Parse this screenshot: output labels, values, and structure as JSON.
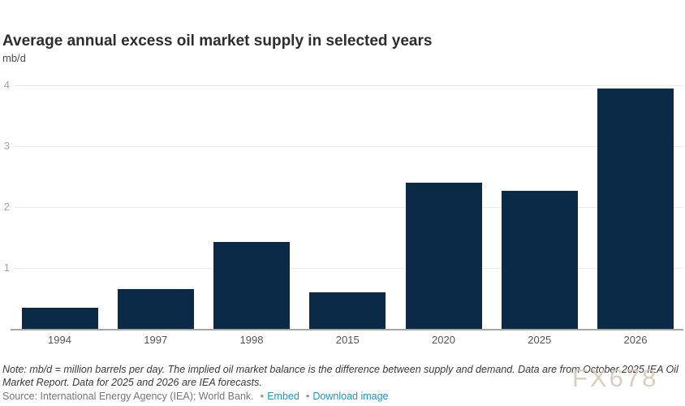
{
  "header": {
    "title": "Average annual excess oil market supply in selected years",
    "unit_label": "mb/d"
  },
  "chart_data": {
    "type": "bar",
    "categories": [
      "1994",
      "1997",
      "1998",
      "2015",
      "2020",
      "2025",
      "2026"
    ],
    "values": [
      0.35,
      0.65,
      1.42,
      0.6,
      2.4,
      2.27,
      3.95
    ],
    "title": "Average annual excess oil market supply in selected years",
    "xlabel": "",
    "ylabel": "mb/d",
    "ylim": [
      0,
      4
    ],
    "yticks": [
      1,
      2,
      3,
      4
    ],
    "grid": true,
    "legend": "none",
    "bar_color": "#0b2a47"
  },
  "footer": {
    "note": "Note: mb/d = million barrels per day. The implied oil market balance is the difference between supply and demand. Data are from October 2025 IEA Oil Market Report. Data for 2025 and 2026 are IEA forecasts.",
    "source": "Source: International Energy Agency (IEA); World Bank.",
    "separator": "•",
    "links": [
      {
        "label": "Embed"
      },
      {
        "label": "Download image"
      }
    ]
  },
  "watermark": {
    "text": "FX678"
  },
  "colors": {
    "bar": "#0b2a47",
    "link": "#1f93d0",
    "watermark": "#d6c6b3",
    "grid": "#ebebeb",
    "axis": "#a6a6a6",
    "tick_text": "#a6a6a6",
    "year_text": "#565656",
    "note_text": "#3a3a3a",
    "source_text": "#767676"
  }
}
